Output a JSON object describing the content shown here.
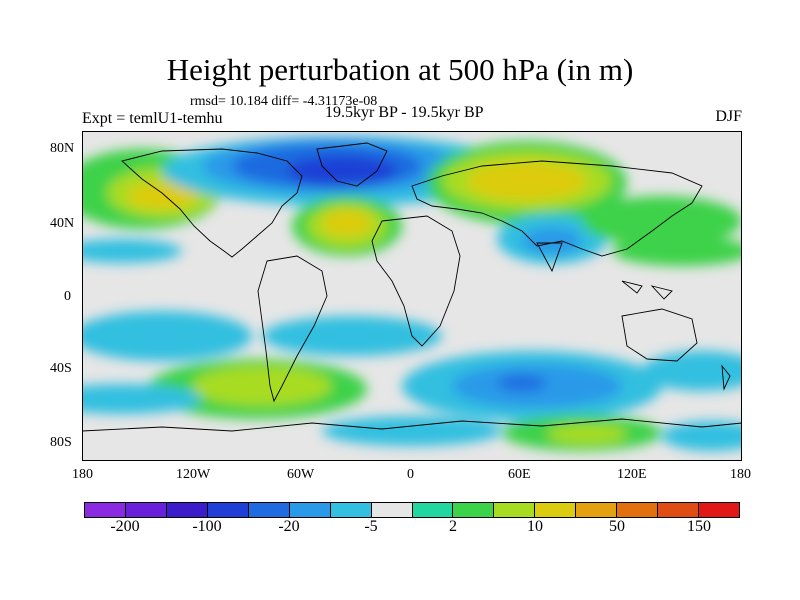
{
  "title": "Height perturbation at 500 hPa (in m)",
  "stats": "rmsd= 10.184 diff= -4.31173e-08",
  "experiment": "Expt = temlU1-temhu",
  "period": "19.5kyr BP - 19.5kyr BP",
  "season": "DJF",
  "lat_labels": [
    "80N",
    "40N",
    "0",
    "40S",
    "80S"
  ],
  "lon_labels": [
    "180",
    "120W",
    "60W",
    "0",
    "60E",
    "120E",
    "180"
  ],
  "colorbar": {
    "colors": [
      "#8a2be2",
      "#6a1fd8",
      "#3b1ec9",
      "#1f3fd6",
      "#1f6be0",
      "#2a9ae8",
      "#33bfe0",
      "#e6e6e6",
      "#22d6a0",
      "#3cd24a",
      "#a8dc22",
      "#dccc10",
      "#e3a010",
      "#e3700f",
      "#e04d14",
      "#e01818"
    ],
    "labels": [
      "-200",
      "-100",
      "-20",
      "-5",
      "2",
      "10",
      "50",
      "150"
    ]
  }
}
